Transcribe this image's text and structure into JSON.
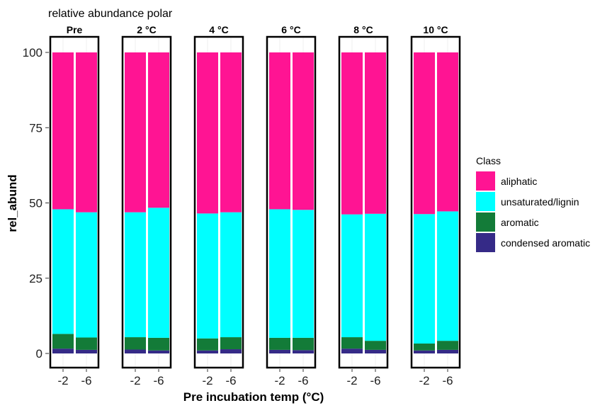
{
  "chart_data": {
    "type": "bar",
    "stacked": true,
    "faceted": true,
    "title": "relative abundance polar",
    "xlabel": "Pre incubation temp (°C)",
    "ylabel": "rel_abund",
    "ylim": [
      0,
      100
    ],
    "yticks": [
      0,
      25,
      50,
      75,
      100
    ],
    "categories": [
      "-2",
      "-6"
    ],
    "facets": [
      "Pre",
      "2 °C",
      "4 °C",
      "6 °C",
      "8 °C",
      "10 °C"
    ],
    "legend": {
      "title": "Class",
      "position": "right"
    },
    "grid": false,
    "series": [
      {
        "name": "condensed aromatic",
        "color": "#352A87",
        "values": [
          [
            1.6,
            1.2
          ],
          [
            1.3,
            1.0
          ],
          [
            1.0,
            1.4
          ],
          [
            1.2,
            1.1
          ],
          [
            1.6,
            1.2
          ],
          [
            1.0,
            1.2
          ]
        ]
      },
      {
        "name": "aromatic",
        "color": "#137B38",
        "values": [
          [
            4.9,
            4.1
          ],
          [
            4.1,
            4.2
          ],
          [
            4.0,
            4.0
          ],
          [
            4.0,
            4.1
          ],
          [
            3.8,
            3.0
          ],
          [
            2.3,
            3.0
          ]
        ]
      },
      {
        "name": "unsaturated/lignin",
        "color": "#00FFFF",
        "values": [
          [
            41.4,
            41.6
          ],
          [
            41.5,
            43.2
          ],
          [
            41.5,
            41.5
          ],
          [
            42.7,
            42.5
          ],
          [
            40.8,
            42.2
          ],
          [
            43.0,
            43.0
          ]
        ]
      },
      {
        "name": "aliphatic",
        "color": "#FF1493",
        "values": [
          [
            52.1,
            53.1
          ],
          [
            53.1,
            51.6
          ],
          [
            53.5,
            53.1
          ],
          [
            52.1,
            52.3
          ],
          [
            53.8,
            53.6
          ],
          [
            53.7,
            52.8
          ]
        ]
      }
    ]
  }
}
